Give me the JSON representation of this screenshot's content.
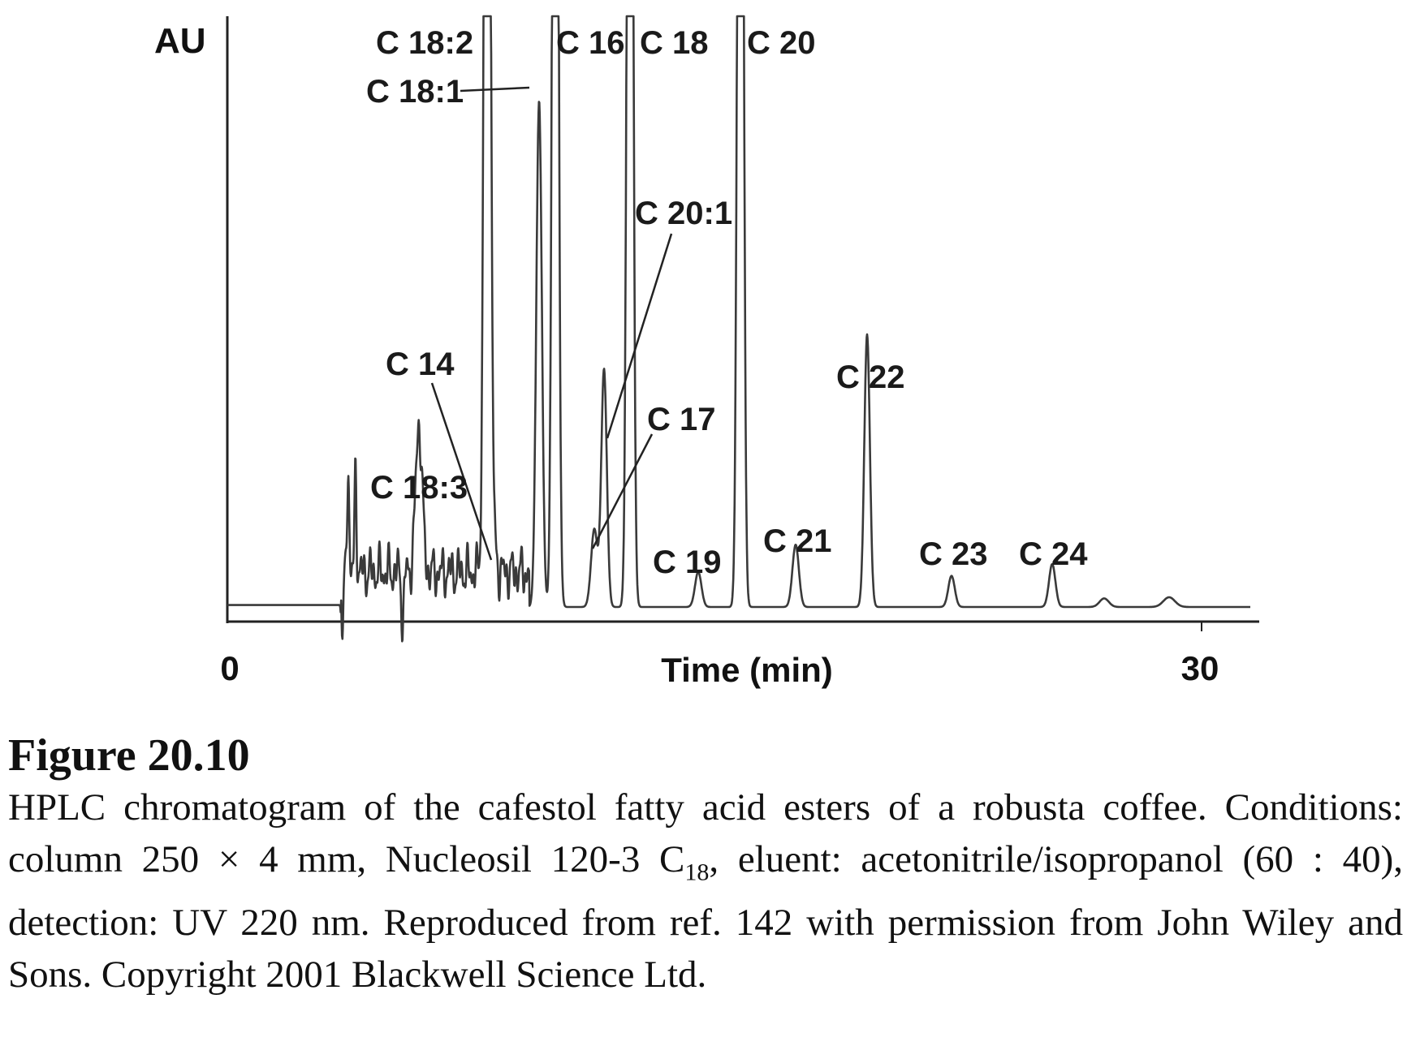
{
  "chart_data": {
    "type": "line",
    "title": "",
    "ylabel": "AU",
    "xlabel": "Time (min)",
    "xlim": [
      0,
      32
    ],
    "x_ticks": [
      0,
      30
    ],
    "x_tick_labels": [
      "0",
      "30"
    ],
    "y_units": "relative absorbance (peak apex heights estimated; tall peaks are off-scale)",
    "baseline_y": 0,
    "ylim": [
      -2,
      22
    ],
    "grid": false,
    "legend": "none",
    "series": [
      {
        "peaks": [
          {
            "label": "C 18:3",
            "rt": 5.9,
            "height": 3.8
          },
          {
            "label": "C 14",
            "rt": 8.1,
            "height": 2.2
          },
          {
            "label": "C 18:2",
            "rt": 8.0,
            "height": 40
          },
          {
            "label": "C 18:1",
            "rt": 9.6,
            "height": 13
          },
          {
            "label": "C 16",
            "rt": 10.1,
            "height": 40
          },
          {
            "label": "C 20:1",
            "rt": 11.6,
            "height": 6.1
          },
          {
            "label": "C 17",
            "rt": 11.3,
            "height": 2.0
          },
          {
            "label": "C 18",
            "rt": 12.4,
            "height": 40
          },
          {
            "label": "C 19",
            "rt": 14.5,
            "height": 0.9
          },
          {
            "label": "C 20",
            "rt": 15.8,
            "height": 40
          },
          {
            "label": "C 21",
            "rt": 17.5,
            "height": 1.6
          },
          {
            "label": "C 22",
            "rt": 19.7,
            "height": 7.0
          },
          {
            "label": "C 23",
            "rt": 22.3,
            "height": 0.8
          },
          {
            "label": "C 24",
            "rt": 25.4,
            "height": 1.1
          }
        ]
      }
    ]
  },
  "caption": {
    "figure_label": "Figure 20.10",
    "text_before_sub": "HPLC chromatogram of the cafestol fatty acid esters of a robusta coffee. Conditions: column 250 × 4 mm, Nucleosil 120-3 C",
    "subscript": "18",
    "text_after_sub": ", eluent: acetonitrile/isopropanol (60 : 40), detection: UV 220 nm. Reproduced from ref. 142 with permission from John Wiley and Sons. Copyright 2001 Blackwell Science Ltd."
  },
  "colors": {
    "trace": "#3a3a3a",
    "axis": "#222222",
    "text": "#111111"
  }
}
